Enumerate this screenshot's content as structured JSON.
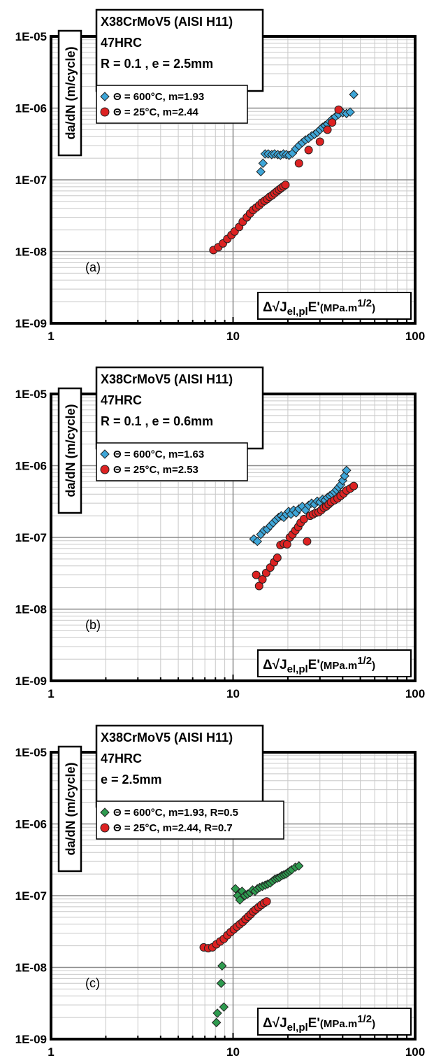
{
  "chart_data": [
    {
      "type": "scatter",
      "panel": "(a)",
      "title_lines": [
        "X38CrMoV5 (AISI H11)",
        "47HRC",
        "R = 0.1 , e = 2.5mm"
      ],
      "xlabel": {
        "prefix": "Δ√J",
        "subscript": "el,pl",
        "main": "E'",
        "unit": "(MPa.m",
        "exponent": "1/2",
        "unit_end": ")"
      },
      "ylabel": "da/dN (m/cycle)",
      "x_scale": "log",
      "y_scale": "log",
      "xlim": [
        1,
        100
      ],
      "ylim": [
        1e-09,
        1e-05
      ],
      "grid": true,
      "x_ticks": [
        "1",
        "10",
        "100"
      ],
      "y_ticks": [
        "1E-09",
        "1E-08",
        "1E-07",
        "1E-06",
        "1E-05"
      ],
      "legend_placement": "top-left",
      "series": [
        {
          "name": "Θ = 600°C,  m=1.93",
          "marker": "diamond",
          "color": "#3ea6d8",
          "points": [
            [
              14.2,
              1.3e-07
            ],
            [
              14.6,
              1.7e-07
            ],
            [
              15.0,
              2.3e-07
            ],
            [
              15.6,
              2.3e-07
            ],
            [
              16.3,
              2.25e-07
            ],
            [
              16.9,
              2.3e-07
            ],
            [
              17.6,
              2.25e-07
            ],
            [
              18.2,
              2.2e-07
            ],
            [
              18.9,
              2.3e-07
            ],
            [
              19.6,
              2.25e-07
            ],
            [
              20.3,
              2.2e-07
            ],
            [
              21.2,
              2.35e-07
            ],
            [
              22.1,
              2.7e-07
            ],
            [
              23.0,
              3e-07
            ],
            [
              24.0,
              3.3e-07
            ],
            [
              25.0,
              3.6e-07
            ],
            [
              26.0,
              3.8e-07
            ],
            [
              27.0,
              4.1e-07
            ],
            [
              28.0,
              4.3e-07
            ],
            [
              29.0,
              4.6e-07
            ],
            [
              30.0,
              5e-07
            ],
            [
              31.0,
              5.4e-07
            ],
            [
              32.0,
              5.7e-07
            ],
            [
              33.0,
              6e-07
            ],
            [
              34.0,
              6.5e-07
            ],
            [
              35.0,
              7e-07
            ],
            [
              36.5,
              7.6e-07
            ],
            [
              38.0,
              8.2e-07
            ],
            [
              40.0,
              8.6e-07
            ],
            [
              42.0,
              8.4e-07
            ],
            [
              44.0,
              8.8e-07
            ],
            [
              46.0,
              1.55e-06
            ]
          ]
        },
        {
          "name": "Θ = 25°C, m=2.44",
          "marker": "circle",
          "color": "#dd2222",
          "points": [
            [
              7.8,
              1.05e-08
            ],
            [
              8.3,
              1.15e-08
            ],
            [
              8.8,
              1.3e-08
            ],
            [
              9.3,
              1.5e-08
            ],
            [
              9.8,
              1.7e-08
            ],
            [
              10.2,
              1.9e-08
            ],
            [
              10.8,
              2.2e-08
            ],
            [
              11.3,
              2.6e-08
            ],
            [
              11.9,
              3e-08
            ],
            [
              12.4,
              3.4e-08
            ],
            [
              12.9,
              3.8e-08
            ],
            [
              13.4,
              4.1e-08
            ],
            [
              13.9,
              4.4e-08
            ],
            [
              14.4,
              4.8e-08
            ],
            [
              14.9,
              5.1e-08
            ],
            [
              15.4,
              5.4e-08
            ],
            [
              15.9,
              5.8e-08
            ],
            [
              16.4,
              6.1e-08
            ],
            [
              16.9,
              6.5e-08
            ],
            [
              17.4,
              6.9e-08
            ],
            [
              17.9,
              7.3e-08
            ],
            [
              18.4,
              7.7e-08
            ],
            [
              18.9,
              8.1e-08
            ],
            [
              19.4,
              8.5e-08
            ],
            [
              23.0,
              1.7e-07
            ],
            [
              26.0,
              2.6e-07
            ],
            [
              30.0,
              3.4e-07
            ],
            [
              33.0,
              5e-07
            ],
            [
              35.0,
              6.3e-07
            ],
            [
              38.0,
              9.5e-07
            ]
          ]
        }
      ]
    },
    {
      "type": "scatter",
      "panel": "(b)",
      "title_lines": [
        "X38CrMoV5 (AISI H11)",
        "47HRC",
        "R = 0.1 , e = 0.6mm"
      ],
      "xlabel": {
        "prefix": "Δ√J",
        "subscript": "el,pl",
        "main": "E'",
        "unit": "(MPa.m",
        "exponent": "1/2",
        "unit_end": ")"
      },
      "ylabel": "da/dN (m/cycle)",
      "x_scale": "log",
      "y_scale": "log",
      "xlim": [
        1,
        100
      ],
      "ylim": [
        1e-09,
        1e-05
      ],
      "grid": true,
      "x_ticks": [
        "1",
        "10",
        "100"
      ],
      "y_ticks": [
        "1E-09",
        "1E-08",
        "1E-07",
        "1E-06",
        "1E-05"
      ],
      "legend_placement": "top-left",
      "series": [
        {
          "name": "Θ = 600°C,  m=1.63",
          "marker": "diamond",
          "color": "#3ea6d8",
          "points": [
            [
              13.0,
              9.5e-08
            ],
            [
              13.6,
              8.8e-08
            ],
            [
              14.2,
              1.1e-07
            ],
            [
              14.8,
              1.25e-07
            ],
            [
              15.4,
              1.3e-07
            ],
            [
              16.0,
              1.45e-07
            ],
            [
              16.6,
              1.6e-07
            ],
            [
              17.2,
              1.75e-07
            ],
            [
              17.8,
              1.9e-07
            ],
            [
              18.4,
              2e-07
            ],
            [
              19.0,
              1.9e-07
            ],
            [
              19.6,
              2.1e-07
            ],
            [
              20.2,
              2.3e-07
            ],
            [
              20.8,
              2.1e-07
            ],
            [
              21.5,
              2.4e-07
            ],
            [
              22.2,
              2.2e-07
            ],
            [
              23.0,
              2.5e-07
            ],
            [
              24.0,
              2.7e-07
            ],
            [
              25.0,
              2.4e-07
            ],
            [
              26.0,
              2.8e-07
            ],
            [
              27.0,
              3e-07
            ],
            [
              28.0,
              2.9e-07
            ],
            [
              29.0,
              3.2e-07
            ],
            [
              30.0,
              3.1e-07
            ],
            [
              31.0,
              3.4e-07
            ],
            [
              32.0,
              3.3e-07
            ],
            [
              33.0,
              3.6e-07
            ],
            [
              34.0,
              3.8e-07
            ],
            [
              35.0,
              4e-07
            ],
            [
              36.0,
              4.3e-07
            ],
            [
              37.0,
              4.6e-07
            ],
            [
              38.0,
              5e-07
            ],
            [
              39.0,
              5.4e-07
            ],
            [
              40.0,
              6.2e-07
            ],
            [
              41.0,
              7.2e-07
            ],
            [
              42.0,
              8.6e-07
            ]
          ]
        },
        {
          "name": "Θ = 25°C, m=2.53",
          "marker": "circle",
          "color": "#dd2222",
          "points": [
            [
              13.4,
              3e-08
            ],
            [
              13.9,
              2.1e-08
            ],
            [
              14.5,
              2.6e-08
            ],
            [
              15.2,
              3.2e-08
            ],
            [
              16.0,
              3.8e-08
            ],
            [
              16.8,
              4.5e-08
            ],
            [
              17.5,
              5.2e-08
            ],
            [
              18.2,
              7.8e-08
            ],
            [
              19.0,
              8.2e-08
            ],
            [
              19.8,
              8e-08
            ],
            [
              20.5,
              1e-07
            ],
            [
              21.2,
              1.1e-07
            ],
            [
              22.0,
              1.25e-07
            ],
            [
              22.8,
              1.4e-07
            ],
            [
              23.5,
              1.6e-07
            ],
            [
              24.5,
              1.8e-07
            ],
            [
              25.5,
              8.8e-08
            ],
            [
              26.5,
              2e-07
            ],
            [
              27.5,
              2.1e-07
            ],
            [
              28.5,
              2.2e-07
            ],
            [
              29.5,
              2.25e-07
            ],
            [
              30.5,
              2.4e-07
            ],
            [
              31.5,
              2.6e-07
            ],
            [
              32.5,
              2.7e-07
            ],
            [
              33.5,
              2.9e-07
            ],
            [
              34.5,
              3.1e-07
            ],
            [
              36.0,
              3.3e-07
            ],
            [
              37.5,
              3.5e-07
            ],
            [
              39.0,
              3.8e-07
            ],
            [
              40.5,
              4.1e-07
            ],
            [
              42.0,
              4.5e-07
            ],
            [
              44.0,
              4.8e-07
            ],
            [
              46.0,
              5.2e-07
            ]
          ]
        }
      ]
    },
    {
      "type": "scatter",
      "panel": "(c)",
      "title_lines": [
        "X38CrMoV5 (AISI H11)",
        "47HRC",
        "e = 2.5mm"
      ],
      "xlabel": {
        "prefix": "Δ√J",
        "subscript": "el,pl",
        "main": "E'",
        "unit": "(MPa.m",
        "exponent": "1/2",
        "unit_end": ")"
      },
      "ylabel": "da/dN (m/cycle)",
      "x_scale": "log",
      "y_scale": "log",
      "xlim": [
        1,
        100
      ],
      "ylim": [
        1e-09,
        1e-05
      ],
      "grid": true,
      "x_ticks": [
        "1",
        "10",
        "100"
      ],
      "y_ticks": [
        "1E-09",
        "1E-08",
        "1E-07",
        "1E-06",
        "1E-05"
      ],
      "legend_placement": "top-left",
      "series": [
        {
          "name": "Θ = 600°C,  m=1.93, R=0.5",
          "marker": "diamond",
          "color": "#2e9b4f",
          "points": [
            [
              8.1,
              1.7e-09
            ],
            [
              8.2,
              2.3e-09
            ],
            [
              8.6,
              6e-09
            ],
            [
              8.7,
              1.05e-08
            ],
            [
              8.9,
              2.8e-09
            ],
            [
              10.3,
              1.25e-07
            ],
            [
              10.6,
              1e-07
            ],
            [
              10.9,
              8.7e-08
            ],
            [
              11.2,
              1.15e-07
            ],
            [
              11.6,
              1e-07
            ],
            [
              12.0,
              1.05e-07
            ],
            [
              12.4,
              1.1e-07
            ],
            [
              12.8,
              1.2e-07
            ],
            [
              13.2,
              1.15e-07
            ],
            [
              13.6,
              1.25e-07
            ],
            [
              14.0,
              1.3e-07
            ],
            [
              14.5,
              1.35e-07
            ],
            [
              15.0,
              1.4e-07
            ],
            [
              15.5,
              1.45e-07
            ],
            [
              16.0,
              1.5e-07
            ],
            [
              16.5,
              1.6e-07
            ],
            [
              17.0,
              1.7e-07
            ],
            [
              17.5,
              1.75e-07
            ],
            [
              18.0,
              1.8e-07
            ],
            [
              18.5,
              1.9e-07
            ],
            [
              19.0,
              1.95e-07
            ],
            [
              19.5,
              2e-07
            ],
            [
              20.0,
              2.1e-07
            ],
            [
              20.5,
              2.2e-07
            ],
            [
              21.0,
              2.3e-07
            ],
            [
              22.0,
              2.5e-07
            ],
            [
              23.0,
              2.6e-07
            ]
          ]
        },
        {
          "name": "Θ = 25°C,    m=2.44, R=0.7",
          "marker": "circle",
          "color": "#dd2222",
          "points": [
            [
              6.9,
              1.9e-08
            ],
            [
              7.3,
              1.85e-08
            ],
            [
              7.7,
              1.9e-08
            ],
            [
              8.1,
              2.1e-08
            ],
            [
              8.5,
              2.3e-08
            ],
            [
              8.9,
              2.5e-08
            ],
            [
              9.3,
              2.8e-08
            ],
            [
              9.7,
              3.1e-08
            ],
            [
              10.1,
              3.4e-08
            ],
            [
              10.5,
              3.7e-08
            ],
            [
              10.9,
              4e-08
            ],
            [
              11.3,
              4.3e-08
            ],
            [
              11.7,
              4.7e-08
            ],
            [
              12.1,
              5.1e-08
            ],
            [
              12.5,
              5.5e-08
            ],
            [
              12.9,
              6e-08
            ],
            [
              13.3,
              6.4e-08
            ],
            [
              13.8,
              6.9e-08
            ],
            [
              14.3,
              7.4e-08
            ],
            [
              14.8,
              7.9e-08
            ],
            [
              15.3,
              8.3e-08
            ]
          ]
        }
      ]
    }
  ]
}
